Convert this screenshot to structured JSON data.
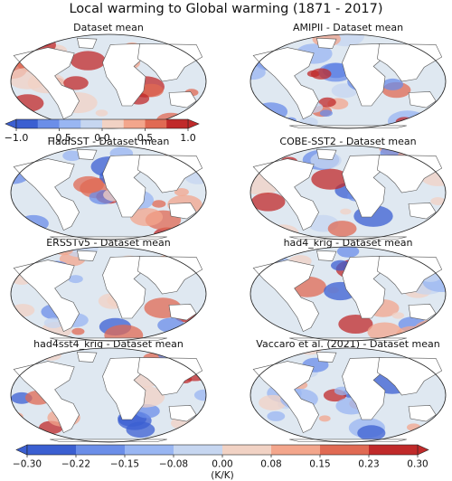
{
  "figure_title": "Local warming to Global warming (1871 - 2017)",
  "colors": {
    "ocean_fill": "#dfe8f1",
    "land_fill": "#ffffff",
    "coast": "#555555"
  },
  "chart_data": [
    {
      "type": "heatmap",
      "title": "Dataset mean",
      "colorbar": {
        "ticks": [
          "−1.0",
          "−0.5",
          "0.0",
          "0.5",
          "1.0"
        ],
        "range": [
          -1.0,
          1.0
        ],
        "levels": 8,
        "extend": "both"
      }
    },
    {
      "type": "heatmap",
      "title": "AMIPII - Dataset mean"
    },
    {
      "type": "heatmap",
      "title": "HadISST - Dataset mean"
    },
    {
      "type": "heatmap",
      "title": "COBE-SST2 - Dataset mean"
    },
    {
      "type": "heatmap",
      "title": "ERSSTv5 - Dataset mean"
    },
    {
      "type": "heatmap",
      "title": "had4_krig - Dataset mean"
    },
    {
      "type": "heatmap",
      "title": "had4sst4_krig - Dataset mean"
    },
    {
      "type": "heatmap",
      "title": "Vaccaro et al. (2021) - Dataset mean"
    },
    {
      "type": "colorbar",
      "title": "",
      "label": "(K/K)",
      "ticks": [
        "−0.30",
        "−0.22",
        "−0.15",
        "−0.08",
        "0.00",
        "0.08",
        "0.15",
        "0.23",
        "0.30"
      ],
      "range": [
        -0.3,
        0.3
      ],
      "levels": 8,
      "extend": "both",
      "palette": [
        "#3b5fd1",
        "#6b8ee8",
        "#99b6f2",
        "#c6d6f0",
        "#f1d2c4",
        "#f3a68c",
        "#e06a53",
        "#c02a2a"
      ]
    }
  ]
}
